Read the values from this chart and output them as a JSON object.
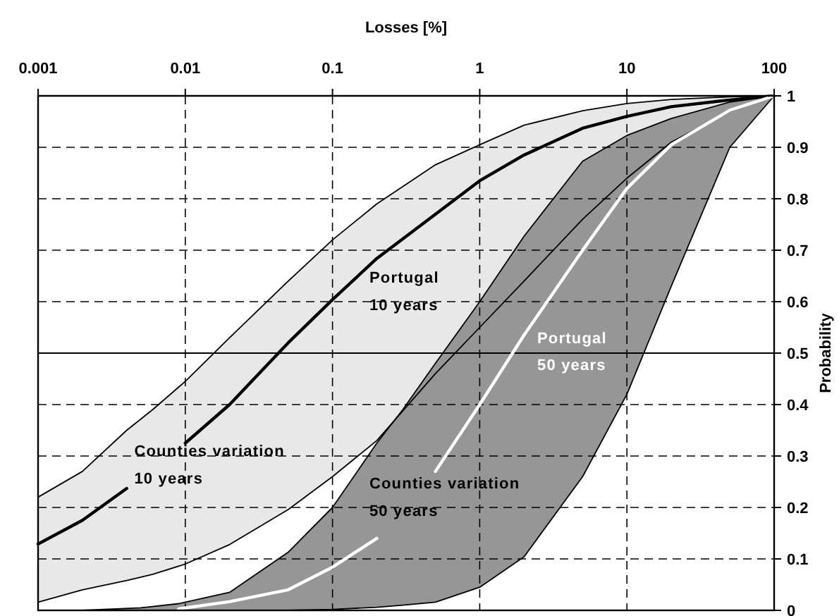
{
  "chart_data": {
    "type": "line",
    "xlabel": "Losses [%]",
    "ylabel": "Probability",
    "log": "x",
    "xlim": [
      0.001,
      100
    ],
    "ylim": [
      0,
      1
    ],
    "xticks": [
      0.001,
      0.01,
      0.1,
      1,
      10,
      100
    ],
    "yticks": [
      0,
      0.1,
      0.2,
      0.3,
      0.4,
      0.5,
      0.6,
      0.7,
      0.8,
      0.9,
      1
    ],
    "grid": true,
    "ref_lines": [
      {
        "axis": "y",
        "value": 0.5,
        "color": "#000000",
        "line_style": "solid"
      }
    ],
    "series": [
      {
        "name": "Portugal\n10 years",
        "color": "#000000",
        "x": [
          0.001,
          0.002,
          0.004,
          0.006,
          0.01,
          0.02,
          0.05,
          0.1,
          0.2,
          0.5,
          1,
          2,
          5,
          10,
          20,
          50,
          100
        ],
        "values": [
          0.129,
          0.175,
          0.237,
          null,
          0.325,
          0.4,
          0.52,
          0.604,
          0.684,
          0.77,
          0.835,
          0.885,
          0.937,
          0.96,
          0.979,
          0.992,
          1
        ],
        "upper": [
          0.22,
          0.27,
          0.35,
          0.39,
          0.445,
          0.53,
          0.64,
          0.72,
          0.79,
          0.866,
          0.905,
          0.943,
          0.971,
          0.985,
          0.993,
          0.998,
          1
        ],
        "lower": [
          0.016,
          0.04,
          0.058,
          0.07,
          0.09,
          0.128,
          0.196,
          0.26,
          0.33,
          0.46,
          0.55,
          0.64,
          0.76,
          0.84,
          0.91,
          0.97,
          1
        ]
      },
      {
        "name": "Portugal\n50 years",
        "color": "#ffffff",
        "x": [
          0.002,
          0.005,
          0.009,
          0.02,
          0.05,
          0.1,
          0.2,
          0.3,
          0.5,
          1,
          2,
          5,
          10,
          20,
          50,
          100
        ],
        "values": [
          null,
          null,
          0.003,
          0.017,
          0.04,
          0.084,
          0.14,
          null,
          0.27,
          0.4,
          0.535,
          0.7,
          0.82,
          0.905,
          0.972,
          1
        ],
        "upper": [
          0,
          0.005,
          0.013,
          0.035,
          0.113,
          0.2,
          0.325,
          0.39,
          0.48,
          0.6,
          0.727,
          0.873,
          0.923,
          0.956,
          0.988,
          1
        ],
        "lower": [
          0,
          0,
          0,
          0,
          0,
          0.002,
          0.006,
          0.01,
          0.016,
          0.045,
          0.104,
          0.26,
          0.42,
          0.63,
          0.9,
          1
        ]
      }
    ],
    "annotations": [
      "Counties variation\n10 years",
      "Counties variation\n50 years"
    ]
  }
}
